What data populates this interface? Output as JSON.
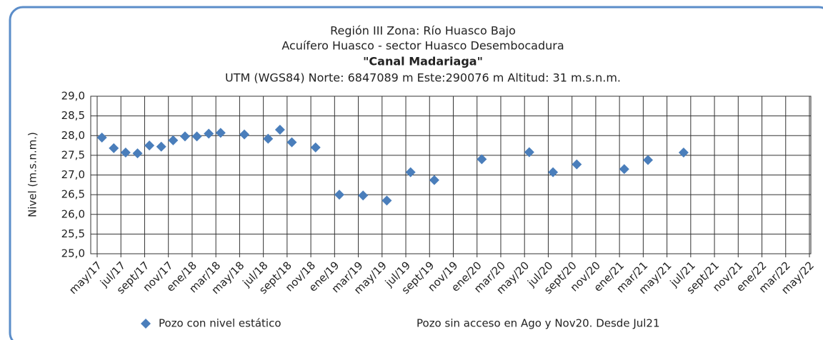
{
  "chart_data": {
    "type": "scatter",
    "title": [
      "Región III  Zona: Río Huasco Bajo",
      "Acuífero Huasco - sector Huasco Desembocadura",
      "\"Canal Madariaga\"",
      "UTM (WGS84) Norte: 6847089 m   Este:290076 m   Altitud: 31 m.s.n.m."
    ],
    "y_label": "Nivel (m.s.n.m.)",
    "note": "Pozo sin acceso en Ago y Nov20. Desde Jul21",
    "series": [
      {
        "name": "Pozo con nivel estático",
        "color": "#4a7ebb",
        "x": [
          "2017-05",
          "2017-06",
          "2017-07",
          "2017-08",
          "2017-09",
          "2017-10",
          "2017-11",
          "2017-12",
          "2018-01",
          "2018-02",
          "2018-03",
          "2018-05",
          "2018-07",
          "2018-08",
          "2018-09",
          "2018-11",
          "2019-01",
          "2019-03",
          "2019-05",
          "2019-07",
          "2019-09",
          "2020-01",
          "2020-05",
          "2020-07",
          "2020-09",
          "2021-01",
          "2021-03",
          "2021-06"
        ],
        "values": [
          27.95,
          27.68,
          27.57,
          27.55,
          27.75,
          27.72,
          27.88,
          27.98,
          27.98,
          28.05,
          28.07,
          28.03,
          27.92,
          28.15,
          27.83,
          27.7,
          26.5,
          26.48,
          26.35,
          27.07,
          26.87,
          27.4,
          27.58,
          27.07,
          27.27,
          27.15,
          27.38,
          27.57
        ]
      }
    ],
    "xlim": [
      "2017-05",
      "2022-05"
    ],
    "xticks": [
      {
        "value": "2017-05",
        "label": "may/17"
      },
      {
        "value": "2017-07",
        "label": "jul/17"
      },
      {
        "value": "2017-09",
        "label": "sept/17"
      },
      {
        "value": "2017-11",
        "label": "nov/17"
      },
      {
        "value": "2018-01",
        "label": "ene/18"
      },
      {
        "value": "2018-03",
        "label": "mar/18"
      },
      {
        "value": "2018-05",
        "label": "may/18"
      },
      {
        "value": "2018-07",
        "label": "jul/18"
      },
      {
        "value": "2018-09",
        "label": "sept/18"
      },
      {
        "value": "2018-11",
        "label": "nov/18"
      },
      {
        "value": "2019-01",
        "label": "ene/19"
      },
      {
        "value": "2019-03",
        "label": "mar/19"
      },
      {
        "value": "2019-05",
        "label": "may/19"
      },
      {
        "value": "2019-07",
        "label": "jul/19"
      },
      {
        "value": "2019-09",
        "label": "sept/19"
      },
      {
        "value": "2019-11",
        "label": "nov/19"
      },
      {
        "value": "2020-01",
        "label": "ene/20"
      },
      {
        "value": "2020-03",
        "label": "mar/20"
      },
      {
        "value": "2020-05",
        "label": "may/20"
      },
      {
        "value": "2020-07",
        "label": "jul/20"
      },
      {
        "value": "2020-09",
        "label": "sept/20"
      },
      {
        "value": "2020-11",
        "label": "nov/20"
      },
      {
        "value": "2021-01",
        "label": "ene/21"
      },
      {
        "value": "2021-03",
        "label": "mar/21"
      },
      {
        "value": "2021-05",
        "label": "may/21"
      },
      {
        "value": "2021-07",
        "label": "jul/21"
      },
      {
        "value": "2021-09",
        "label": "sept/21"
      },
      {
        "value": "2021-11",
        "label": "nov/21"
      },
      {
        "value": "2022-01",
        "label": "ene/22"
      },
      {
        "value": "2022-03",
        "label": "mar/22"
      },
      {
        "value": "2022-05",
        "label": "may/22"
      }
    ],
    "ylim": [
      25,
      29
    ],
    "yticks": [
      {
        "value": 25,
        "label": "25,0"
      },
      {
        "value": 25.5,
        "label": "25,5"
      },
      {
        "value": 26,
        "label": "26,0"
      },
      {
        "value": 26.5,
        "label": "26,5"
      },
      {
        "value": 27,
        "label": "27,0"
      },
      {
        "value": 27.5,
        "label": "27,5"
      },
      {
        "value": 28,
        "label": "28,0"
      },
      {
        "value": 28.5,
        "label": "28,5"
      },
      {
        "value": 29,
        "label": "29,0"
      }
    ],
    "grid": true
  }
}
